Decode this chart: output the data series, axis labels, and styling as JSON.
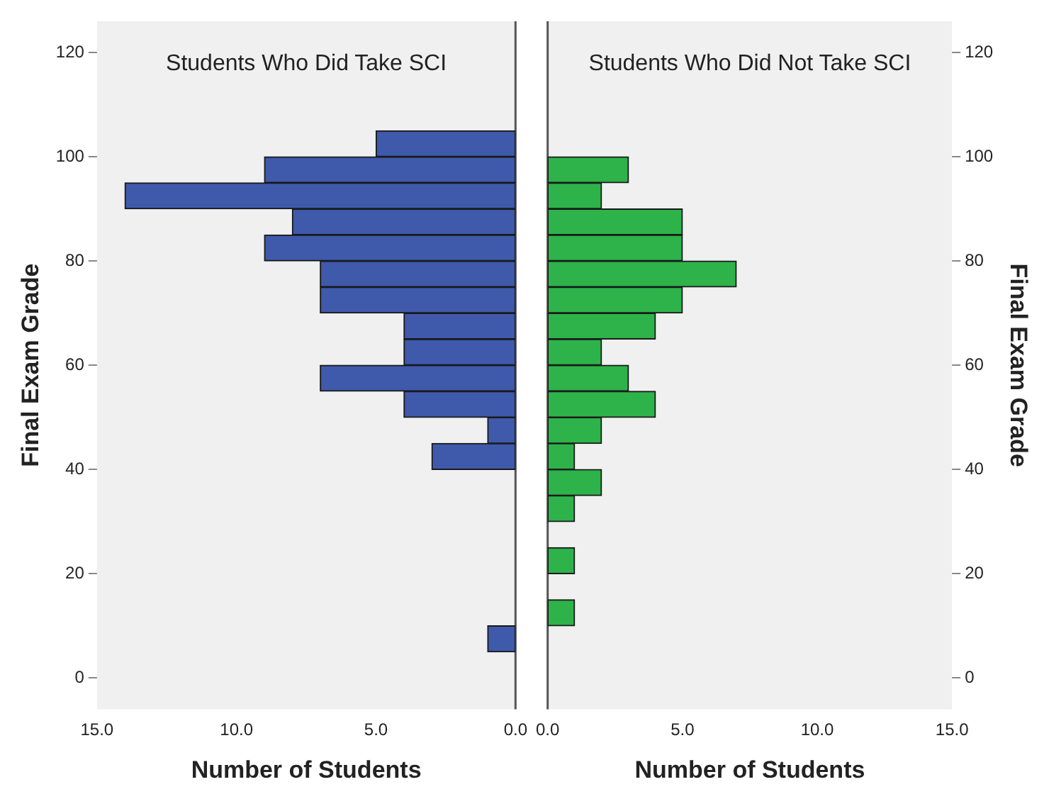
{
  "chart_data": [
    {
      "type": "histogram",
      "orientation": "horizontal",
      "title": "Students Who Did Take SCI",
      "xlabel": "Number of Students",
      "ylabel": "Final Exam Grade",
      "color": "#3f59ab",
      "bins": [
        105,
        100,
        95,
        90,
        85,
        80,
        75,
        70,
        65,
        60,
        55,
        50,
        45,
        40,
        35,
        30,
        25,
        20,
        15,
        10,
        5
      ],
      "values": [
        5,
        9,
        14,
        8,
        9,
        7,
        7,
        4,
        4,
        7,
        4,
        1,
        3,
        0,
        0,
        0,
        0,
        0,
        0,
        1
      ],
      "xlim": [
        15,
        0
      ],
      "xticks": [
        {
          "value": 15,
          "label": "15.0"
        },
        {
          "value": 10,
          "label": "10.0"
        },
        {
          "value": 5,
          "label": "5.0"
        },
        {
          "value": 0,
          "label": "0.0"
        }
      ],
      "ylim": [
        -6,
        126
      ],
      "yticks": [
        0,
        20,
        40,
        60,
        80,
        100,
        120
      ],
      "grid": false
    },
    {
      "type": "histogram",
      "orientation": "horizontal",
      "title": "Students Who Did Not Take SCI",
      "xlabel": "Number of Students",
      "ylabel": "Final Exam Grade",
      "color": "#2db34a",
      "bins": [
        105,
        100,
        95,
        90,
        85,
        80,
        75,
        70,
        65,
        60,
        55,
        50,
        45,
        40,
        35,
        30,
        25,
        20,
        15,
        10,
        5
      ],
      "values": [
        0,
        3,
        2,
        5,
        5,
        7,
        5,
        4,
        2,
        3,
        4,
        2,
        1,
        2,
        1,
        0,
        1,
        0,
        1,
        0
      ],
      "xlim": [
        0,
        15
      ],
      "xticks": [
        {
          "value": 0,
          "label": "0.0"
        },
        {
          "value": 5,
          "label": "5.0"
        },
        {
          "value": 10,
          "label": "10.0"
        },
        {
          "value": 15,
          "label": "15.0"
        }
      ],
      "ylim": [
        -6,
        126
      ],
      "yticks": [
        0,
        20,
        40,
        60,
        80,
        100,
        120
      ],
      "grid": false
    }
  ]
}
